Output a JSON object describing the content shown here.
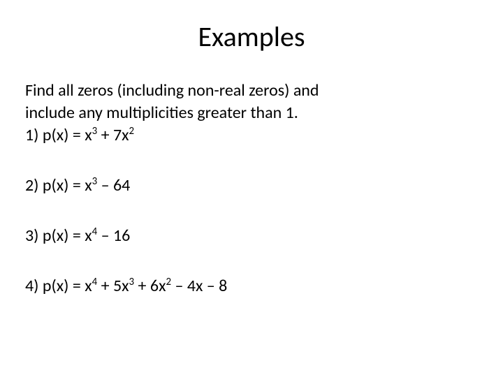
{
  "title": "Examples",
  "intro_line1": "Find all zeros (including non-real zeros) and",
  "intro_line2": "include any multiplicities greater than 1.",
  "items": [
    {
      "label": "1)  p(x) = x",
      "sup1": "3",
      "mid": " + 7x",
      "sup2": "2",
      "tail": ""
    },
    {
      "label": "2)  p(x) = x",
      "sup1": "3",
      "mid": " – 64",
      "sup2": "",
      "tail": ""
    },
    {
      "label": "3)  p(x) = x",
      "sup1": "4",
      "mid": " – 16",
      "sup2": "",
      "tail": ""
    },
    {
      "label": "4)  p(x) = x",
      "sup1": "4",
      "mid": " + 5x",
      "sup2": "3",
      "tail_mid": " + 6x",
      "sup3": "2",
      "tail": " – 4x – 8"
    }
  ],
  "colors": {
    "text": "#000000",
    "background": "#ffffff"
  },
  "typography": {
    "title_fontsize": 40,
    "body_fontsize": 24,
    "font_family": "Calibri"
  }
}
